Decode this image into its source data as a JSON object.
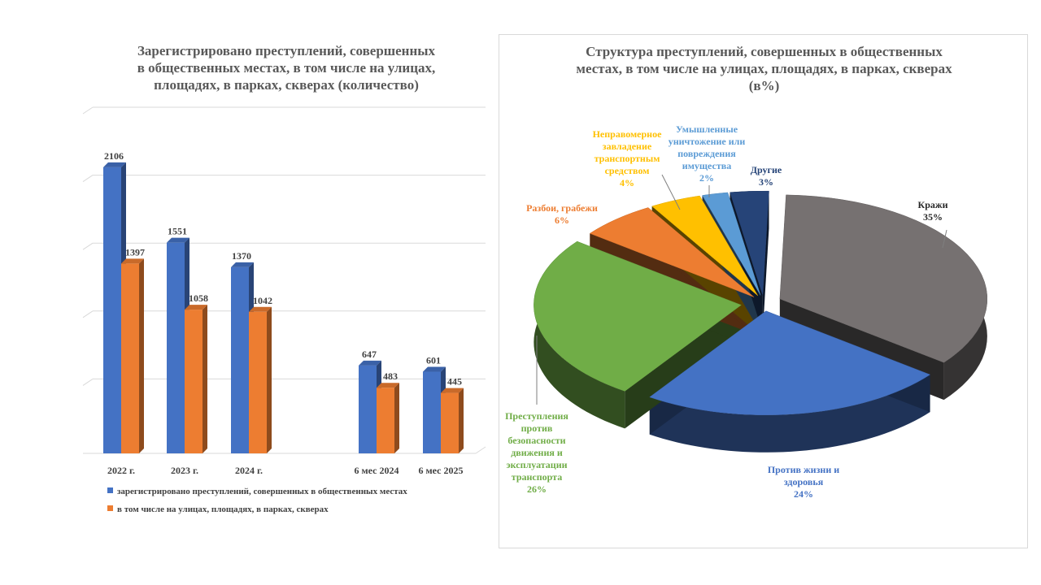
{
  "colors": {
    "series_blue": "#4472c4",
    "series_orange": "#ed7d31",
    "kraji": "#767171",
    "life": "#4472c4",
    "transport": "#70ad47",
    "robbery": "#ed7d31",
    "vehicle": "#ffc000",
    "property": "#5b9bd5",
    "other": "#264478"
  },
  "chart_data": [
    {
      "type": "bar",
      "title": "Зарегистрировано преступлений, совершенных в общественных местах, в том числе на улицах, площадях, в парках, скверах (количество)",
      "categories": [
        "2022 г.",
        "2023 г.",
        "2024 г.",
        "6 мес 2024",
        "6 мес 2025"
      ],
      "series": [
        {
          "name": "зарегистрировано  преступлений,  совершенных  в общественных  местах",
          "values": [
            2106,
            1551,
            1370,
            647,
            601
          ]
        },
        {
          "name": "в том числе на улицах, площадях, в парках, скверах",
          "values": [
            1397,
            1058,
            1042,
            483,
            445
          ]
        }
      ],
      "ylim": [
        0,
        2500
      ],
      "grid": true,
      "legend": "bottom"
    },
    {
      "type": "pie",
      "title": "Структура преступлений, совершенных в общественных местах, в том числе на улицах, площадях, в парках, скверах (в%)",
      "slices": [
        {
          "label": "Кражи",
          "value": 35,
          "text": "35%"
        },
        {
          "label": "Против жизни и здоровья",
          "value": 24,
          "text": "24%"
        },
        {
          "label": "Преступления против безопасности движения и эксплуатации транспорта",
          "value": 26,
          "text": "26%"
        },
        {
          "label": "Разбои, грабежи",
          "value": 6,
          "text": "6%"
        },
        {
          "label": "Неправомерное завладение транспортным средством",
          "value": 4,
          "text": "4%"
        },
        {
          "label": "Умышленное уничтожение или повреждения имущества",
          "value": 2,
          "text": "2%"
        },
        {
          "label": "Другие",
          "value": 3,
          "text": "3%"
        }
      ]
    }
  ],
  "pie_label_lines": [
    [
      "Кражи",
      "35%"
    ],
    [
      "Против  жизни  и",
      "здоровья",
      "24%"
    ],
    [
      "Преступления",
      "против",
      "безопасности",
      "движения и",
      "эксплуатации",
      "транспорта",
      "26%"
    ],
    [
      "Разбои,  грабежи",
      "6%"
    ],
    [
      "Неправомерное",
      "завладение",
      "транспортным",
      "средством",
      "4%"
    ],
    [
      "Умышленные",
      "уничтожение  или",
      "повреждения",
      "имущества",
      "2%"
    ],
    [
      "Другие",
      "3%"
    ]
  ],
  "left_title_lines": [
    "Зарегистрировано преступлений, совершенных",
    "в общественных местах, в том числе на улицах,",
    "площадях, в парках, скверах (количество)"
  ],
  "right_title_lines": [
    "Структура преступлений, совершенных в общественных",
    "местах, в том числе на улицах, площадях, в парках, скверах",
    "(в%)"
  ],
  "legend_lines": [
    "зарегистрировано  преступлений,  совершенных  в общественных  местах",
    "в том  числе  на  улицах,  площадях,  в  парках,  скверах"
  ]
}
